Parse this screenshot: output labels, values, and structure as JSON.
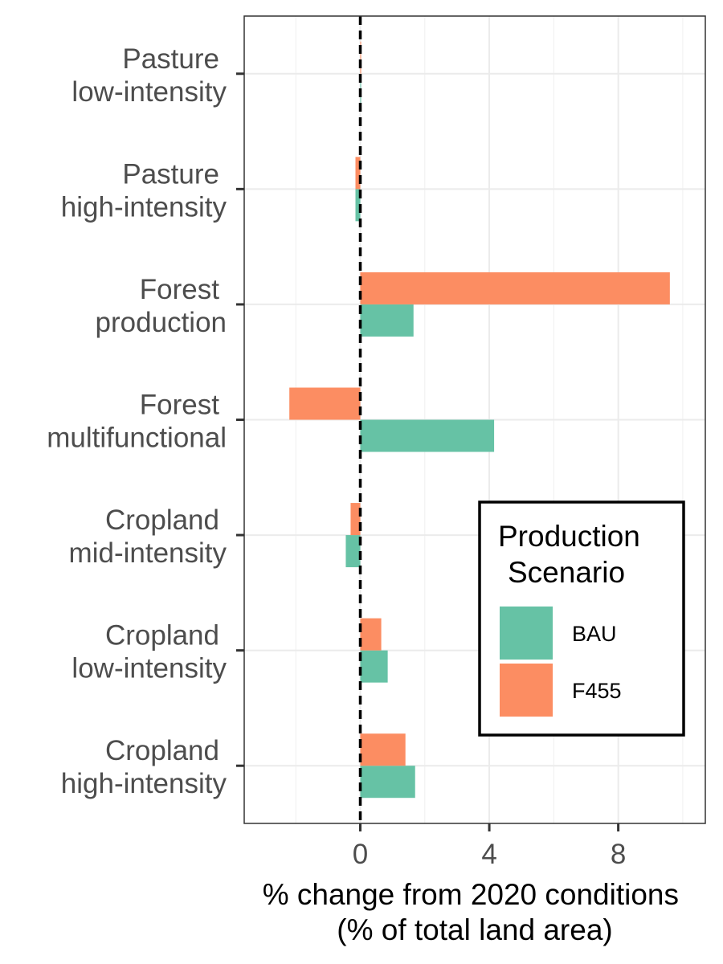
{
  "chart_data": {
    "type": "bar",
    "orientation": "horizontal",
    "categories": [
      [
        "Pasture",
        "low-intensity"
      ],
      [
        "Pasture",
        "high-intensity"
      ],
      [
        "Forest",
        "production"
      ],
      [
        "Forest",
        "multifunctional"
      ],
      [
        "Cropland",
        "mid-intensity"
      ],
      [
        "Cropland",
        "low-intensity"
      ],
      [
        "Cropland",
        "high-intensity"
      ]
    ],
    "series": [
      {
        "name": "BAU",
        "color": "#66c2a5",
        "values": [
          0.02,
          -0.15,
          1.65,
          4.15,
          -0.45,
          0.85,
          1.7
        ]
      },
      {
        "name": "F455",
        "color": "#fc8d62",
        "values": [
          0.02,
          -0.15,
          9.6,
          -2.2,
          -0.3,
          0.65,
          1.4
        ]
      }
    ],
    "xlabel": [
      "% change from 2020 conditions",
      "(% of total land area)"
    ],
    "xlim": [
      -3.6,
      10.7
    ],
    "xticks": [
      0,
      4,
      8
    ],
    "reference_line": {
      "x": 0,
      "style": "dashed",
      "color": "#000000"
    },
    "grid": true,
    "legend": {
      "title": [
        "Production",
        "Scenario"
      ],
      "placement": "bottom-right inside"
    }
  }
}
